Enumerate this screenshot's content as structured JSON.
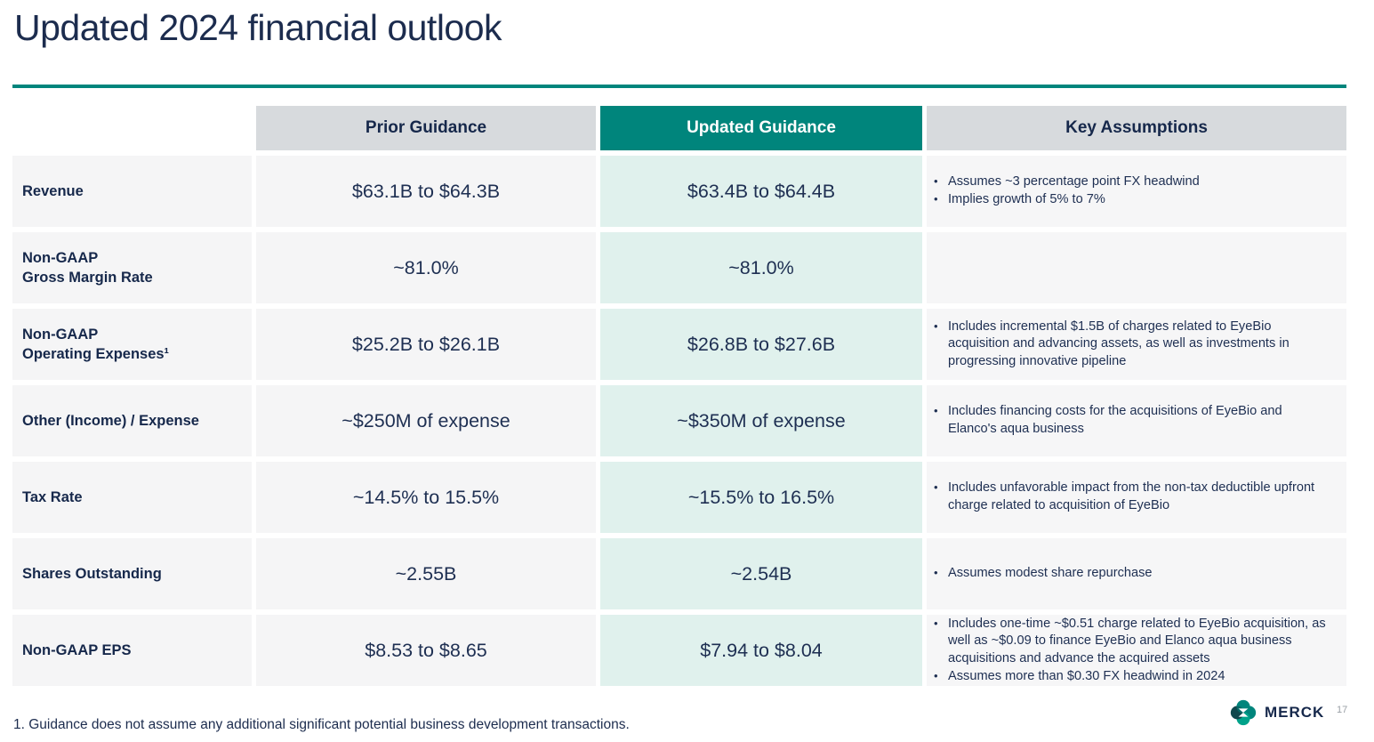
{
  "slide": {
    "title": "Updated 2024 financial outlook",
    "footnote": "1. Guidance does not assume any additional significant potential business development transactions.",
    "brand_wordmark": "MERCK",
    "page_number": "17"
  },
  "colors": {
    "accent_teal": "#00857C",
    "navy_text": "#16284B",
    "updated_column_mint": "#E0F1ED",
    "header_grey": "#D7DADD",
    "cell_grey": "#F5F5F6"
  },
  "icons": {
    "merck_logo": "merck-logo"
  },
  "table": {
    "headers": {
      "prior": "Prior Guidance",
      "updated": "Updated Guidance",
      "assumptions": "Key Assumptions"
    },
    "rows": [
      {
        "label": "Revenue",
        "prior": "$63.1B to $64.3B",
        "updated": "$63.4B to $64.4B",
        "assumptions": [
          "Assumes ~3 percentage point FX headwind",
          "Implies growth of 5% to 7%"
        ]
      },
      {
        "label": "Non-GAAP\nGross Margin Rate",
        "prior": "~81.0%",
        "updated": "~81.0%",
        "assumptions": []
      },
      {
        "label": "Non-GAAP\nOperating Expenses¹",
        "prior": "$25.2B to $26.1B",
        "updated": "$26.8B to $27.6B",
        "assumptions": [
          "Includes incremental $1.5B of charges related to EyeBio acquisition and advancing assets, as well as investments in progressing innovative pipeline"
        ]
      },
      {
        "label": "Other (Income) / Expense",
        "prior": "~$250M of expense",
        "updated": "~$350M of expense",
        "assumptions": [
          "Includes financing costs for the acquisitions of EyeBio and Elanco's aqua business"
        ]
      },
      {
        "label": "Tax Rate",
        "prior": "~14.5% to 15.5%",
        "updated": "~15.5% to 16.5%",
        "assumptions": [
          "Includes unfavorable impact from the non-tax deductible upfront charge related to acquisition of EyeBio"
        ]
      },
      {
        "label": "Shares Outstanding",
        "prior": "~2.55B",
        "updated": "~2.54B",
        "assumptions": [
          "Assumes modest share repurchase"
        ]
      },
      {
        "label": "Non-GAAP EPS",
        "prior": "$8.53 to $8.65",
        "updated": "$7.94 to $8.04",
        "assumptions": [
          "Includes one-time ~$0.51 charge related to EyeBio acquisition, as well as ~$0.09 to finance EyeBio and Elanco aqua business acquisitions and advance the acquired assets",
          "Assumes more than $0.30 FX headwind in 2024"
        ]
      }
    ]
  }
}
